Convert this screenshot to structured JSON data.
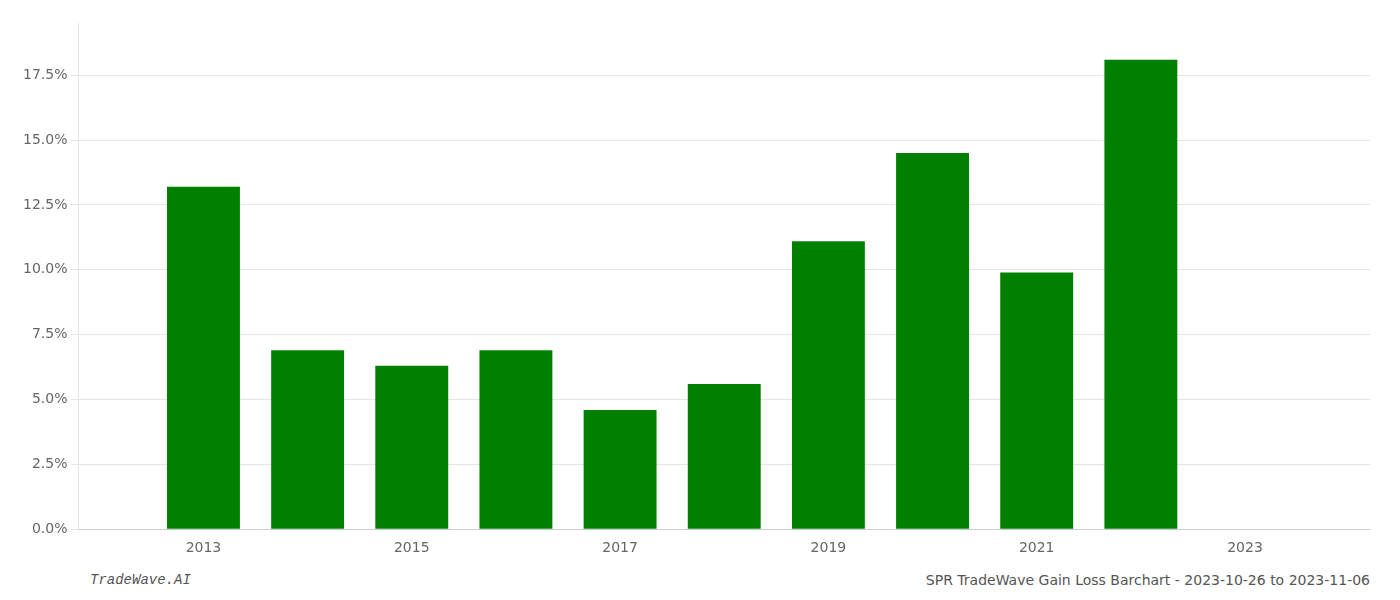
{
  "chart_data": {
    "type": "bar",
    "x": [
      2013,
      2014,
      2015,
      2016,
      2017,
      2018,
      2019,
      2020,
      2021,
      2022
    ],
    "values": [
      0.132,
      0.069,
      0.063,
      0.069,
      0.046,
      0.056,
      0.111,
      0.145,
      0.099,
      0.181
    ],
    "color": "#008000",
    "xlim": [
      2011.8,
      2024.2
    ],
    "xticks": [
      2013,
      2015,
      2017,
      2019,
      2021,
      2023
    ],
    "ylim": [
      0.0,
      0.195
    ],
    "yticks": [
      {
        "value": 0.0,
        "label": "0.0%"
      },
      {
        "value": 0.025,
        "label": "2.5%"
      },
      {
        "value": 0.05,
        "label": "5.0%"
      },
      {
        "value": 0.075,
        "label": "7.5%"
      },
      {
        "value": 0.1,
        "label": "10.0%"
      },
      {
        "value": 0.125,
        "label": "12.5%"
      },
      {
        "value": 0.15,
        "label": "15.0%"
      },
      {
        "value": 0.175,
        "label": "17.5%"
      }
    ],
    "grid": true,
    "annotations": [
      "TradeWave.AI",
      "SPR TradeWave Gain Loss Barchart - 2023-10-26 to 2023-11-06"
    ]
  }
}
